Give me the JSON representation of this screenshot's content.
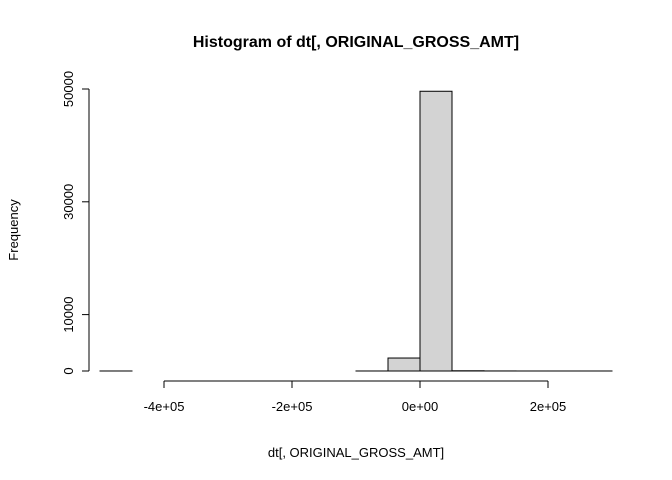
{
  "chart_data": {
    "type": "bar",
    "title": "Histogram of dt[, ORIGINAL_GROSS_AMT]",
    "xlabel": "dt[, ORIGINAL_GROSS_AMT]",
    "ylabel": "Frequency",
    "bin_edges": [
      -500000,
      -450000,
      -400000,
      -350000,
      -300000,
      -250000,
      -200000,
      -150000,
      -100000,
      -50000,
      0,
      50000,
      100000,
      150000,
      200000,
      250000,
      300000
    ],
    "values": [
      1,
      0,
      0,
      0,
      0,
      0,
      0,
      0,
      3,
      2300,
      49600,
      40,
      10,
      2,
      1,
      1
    ],
    "xlim": [
      -500000,
      300000
    ],
    "ylim": [
      0,
      50000
    ],
    "x_ticks": [
      {
        "value": -400000,
        "label": "-4e+05"
      },
      {
        "value": -200000,
        "label": "-2e+05"
      },
      {
        "value": 0,
        "label": "0e+00"
      },
      {
        "value": 200000,
        "label": "2e+05"
      }
    ],
    "y_ticks": [
      {
        "value": 0,
        "label": "0"
      },
      {
        "value": 10000,
        "label": "10000"
      },
      {
        "value": 30000,
        "label": "30000"
      },
      {
        "value": 50000,
        "label": "50000"
      }
    ],
    "bar_color": "#d3d3d3",
    "grid": false
  }
}
